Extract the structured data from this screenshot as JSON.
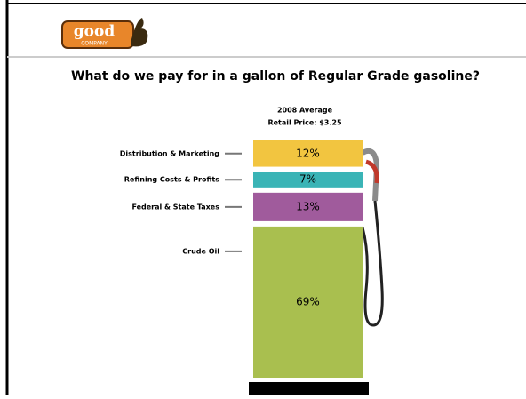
{
  "header": {
    "logo": "good",
    "logo_sub": "COMPANY"
  },
  "chart_data": {
    "type": "stacked-bar",
    "title": "What do we pay for in a gallon of Regular Grade gasoline?",
    "subtitle": [
      "2008 Average",
      "Retail Price: $3.25"
    ],
    "categories": [
      "Distribution & Marketing",
      "Refining Costs & Profits",
      "Federal & State Taxes",
      "Crude Oil"
    ],
    "values": [
      12,
      7,
      13,
      69
    ],
    "value_labels": [
      "12%",
      "7%",
      "13%",
      "69%"
    ],
    "colors": [
      "#f2c540",
      "#3ab4b6",
      "#a05b9c",
      "#a9bf4f"
    ]
  }
}
